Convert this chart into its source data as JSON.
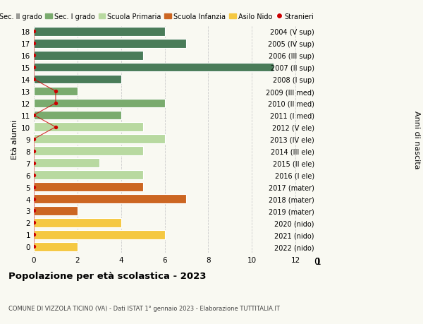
{
  "ages": [
    18,
    17,
    16,
    15,
    14,
    13,
    12,
    11,
    10,
    9,
    8,
    7,
    6,
    5,
    4,
    3,
    2,
    1,
    0
  ],
  "right_labels": [
    "2004 (V sup)",
    "2005 (IV sup)",
    "2006 (III sup)",
    "2007 (II sup)",
    "2008 (I sup)",
    "2009 (III med)",
    "2010 (II med)",
    "2011 (I med)",
    "2012 (V ele)",
    "2013 (IV ele)",
    "2014 (III ele)",
    "2015 (II ele)",
    "2016 (I ele)",
    "2017 (mater)",
    "2018 (mater)",
    "2019 (mater)",
    "2020 (nido)",
    "2021 (nido)",
    "2022 (nido)"
  ],
  "bar_values": [
    6,
    7,
    5,
    11,
    4,
    2,
    6,
    4,
    5,
    6,
    5,
    3,
    5,
    5,
    7,
    2,
    4,
    6,
    2
  ],
  "bar_colors": [
    "#4a7c59",
    "#4a7c59",
    "#4a7c59",
    "#4a7c59",
    "#4a7c59",
    "#7aab6e",
    "#7aab6e",
    "#7aab6e",
    "#b8d9a0",
    "#b8d9a0",
    "#b8d9a0",
    "#b8d9a0",
    "#b8d9a0",
    "#cc6622",
    "#cc6622",
    "#cc6622",
    "#f5c842",
    "#f5c842",
    "#f5c842"
  ],
  "stranieri_x": [
    0,
    0,
    0,
    0,
    0,
    1,
    1,
    0,
    1,
    0,
    0,
    0,
    0,
    0,
    0,
    0,
    0,
    0,
    0
  ],
  "color_sec2": "#4a7c59",
  "color_sec1": "#7aab6e",
  "color_prim": "#b8d9a0",
  "color_infanzia": "#cc6622",
  "color_nido": "#f5c842",
  "color_stranieri": "#cc0000",
  "legend_labels": [
    "Sec. II grado",
    "Sec. I grado",
    "Scuola Primaria",
    "Scuola Infanzia",
    "Asilo Nido",
    "Stranieri"
  ],
  "title": "Popolazione per età scolastica - 2023",
  "subtitle": "COMUNE DI VIZZOLA TICINO (VA) - Dati ISTAT 1° gennaio 2023 - Elaborazione TUTTITALIA.IT",
  "ylabel": "Età alunni",
  "ylabel_right": "Anni di nascita",
  "xlim": [
    0,
    13
  ],
  "xticks": [
    0,
    2,
    4,
    6,
    8,
    10,
    12
  ],
  "background_color": "#f9f9f2"
}
